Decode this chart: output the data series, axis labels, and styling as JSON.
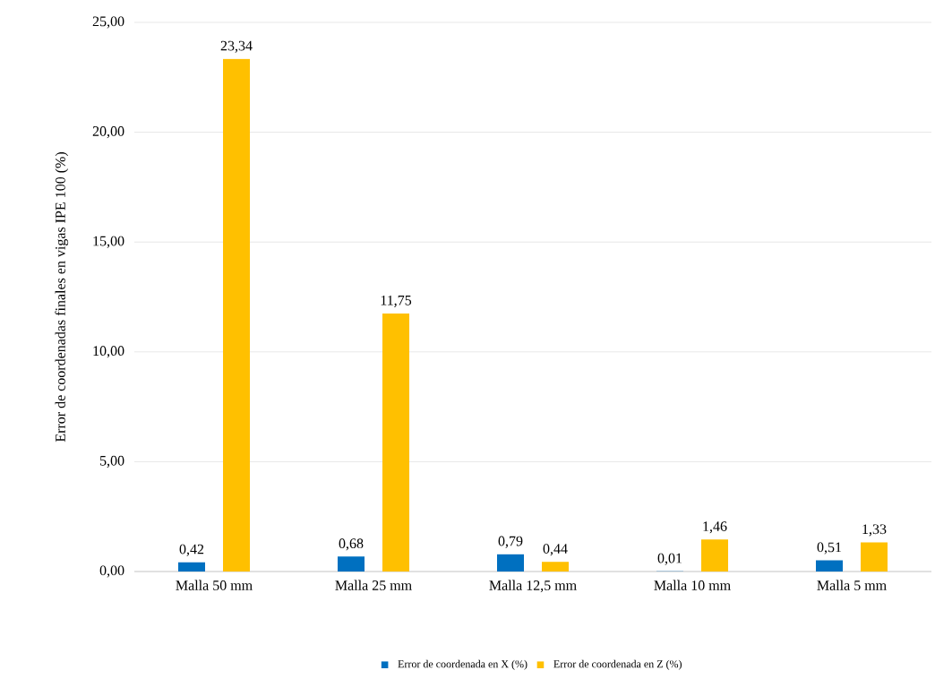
{
  "chart_data": {
    "type": "bar",
    "ylabel": "Error de coordenadas finales en vigas IPE 100 (%)",
    "categories": [
      "Malla 50 mm",
      "Malla 25 mm",
      "Malla 12,5 mm",
      "Malla 10 mm",
      "Malla 5 mm"
    ],
    "series": [
      {
        "name": "Error de coordenada en X (%)",
        "color": "#0070c0",
        "values": [
          0.42,
          0.68,
          0.79,
          0.01,
          0.51
        ],
        "value_labels": [
          "0,42",
          "0,68",
          "0,79",
          "0,01",
          "0,51"
        ]
      },
      {
        "name": "Error de coordenada en Z (%)",
        "color": "#ffc000",
        "values": [
          23.34,
          11.75,
          0.44,
          1.46,
          1.33
        ],
        "value_labels": [
          "23,34",
          "11,75",
          "0,44",
          "1,46",
          "1,33"
        ]
      }
    ],
    "ylim": [
      0,
      25
    ],
    "yticks": [
      {
        "value": 0,
        "label": "0,00"
      },
      {
        "value": 5,
        "label": "5,00"
      },
      {
        "value": 10,
        "label": "10,00"
      },
      {
        "value": 15,
        "label": "15,00"
      },
      {
        "value": 20,
        "label": "20,00"
      },
      {
        "value": 25,
        "label": "25,00"
      }
    ],
    "grid": "y",
    "legend": "bottom"
  }
}
